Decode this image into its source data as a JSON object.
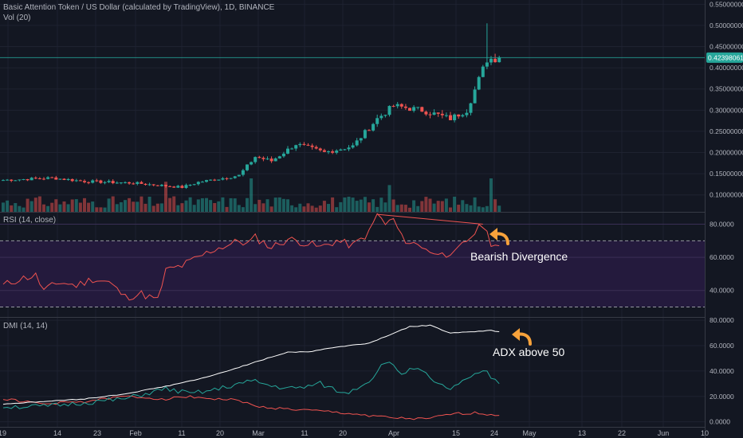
{
  "header": {
    "title": "Basic Attention Token / US Dollar (calculated by TradingView), 1D, BINANCE",
    "vol_label": "Vol (20)",
    "rsi_label": "RSI (14, close)",
    "dmi_label": "DMI (14, 14)"
  },
  "last_price": "0.42398061",
  "annotations": {
    "rsi": "Bearish Divergence",
    "dmi": "ADX above 50"
  },
  "colors": {
    "background": "#131722",
    "up": "#26a69a",
    "down": "#ef5350",
    "rsi_line": "#ef5350",
    "rsi_band": "#2a1b46",
    "adx": "#ffffff",
    "di_plus": "#26a69a",
    "di_minus": "#ef5350",
    "arrow": "#f7a23b",
    "price_line": "#26a69a"
  },
  "chart_data": [
    {
      "type": "candlestick",
      "name": "price",
      "x_ticks": [
        "19",
        "14",
        "23",
        "Feb",
        "11",
        "20",
        "Mar",
        "11",
        "20",
        "Apr",
        "15",
        "24",
        "May",
        "13",
        "22",
        "Jun",
        "10"
      ],
      "y_ticks": [
        "0.55000000",
        "0.50000000",
        "0.45000000",
        "0.40000000",
        "0.35000000",
        "0.30000000",
        "0.25000000",
        "0.20000000",
        "0.15000000",
        "0.10000000"
      ],
      "ylim": [
        0.06,
        0.56
      ],
      "segments": [
        [
          0,
          0.135
        ],
        [
          12,
          0.14
        ],
        [
          20,
          0.132
        ],
        [
          32,
          0.128
        ],
        [
          44,
          0.118
        ],
        [
          48,
          0.13
        ],
        [
          58,
          0.146
        ],
        [
          62,
          0.19
        ],
        [
          66,
          0.18
        ],
        [
          72,
          0.22
        ],
        [
          79,
          0.2
        ],
        [
          86,
          0.215
        ],
        [
          92,
          0.28
        ],
        [
          96,
          0.31
        ],
        [
          103,
          0.3
        ],
        [
          110,
          0.28
        ],
        [
          114,
          0.3
        ],
        [
          119,
          0.42
        ],
        [
          122,
          0.424
        ]
      ],
      "last_value": 0.42398061,
      "wick_high": 0.505,
      "note": "approximate daily OHLC reconstruction"
    },
    {
      "type": "bar",
      "name": "Vol (20)",
      "values_relative": "approximate volume bars beneath price",
      "spikes": [
        [
          40,
          0.9
        ],
        [
          61,
          1.0
        ],
        [
          95,
          0.8
        ],
        [
          120,
          1.0
        ]
      ]
    },
    {
      "type": "line",
      "name": "RSI (14, close)",
      "y_ticks": [
        "80.0000",
        "60.0000",
        "40.0000"
      ],
      "ylim": [
        24,
        87
      ],
      "bands": [
        30,
        70
      ],
      "points": [
        [
          0,
          43
        ],
        [
          4,
          47
        ],
        [
          8,
          49
        ],
        [
          10,
          40
        ],
        [
          14,
          45
        ],
        [
          18,
          43
        ],
        [
          22,
          47
        ],
        [
          26,
          45
        ],
        [
          30,
          36
        ],
        [
          34,
          38
        ],
        [
          38,
          34
        ],
        [
          40,
          52
        ],
        [
          44,
          55
        ],
        [
          48,
          60
        ],
        [
          52,
          65
        ],
        [
          56,
          68
        ],
        [
          58,
          70
        ],
        [
          60,
          68
        ],
        [
          62,
          72
        ],
        [
          66,
          66
        ],
        [
          70,
          71
        ],
        [
          74,
          69
        ],
        [
          78,
          66
        ],
        [
          82,
          70
        ],
        [
          86,
          67
        ],
        [
          90,
          75
        ],
        [
          92,
          86
        ],
        [
          94,
          80
        ],
        [
          96,
          83
        ],
        [
          98,
          72
        ],
        [
          100,
          69
        ],
        [
          104,
          66
        ],
        [
          106,
          61
        ],
        [
          108,
          65
        ],
        [
          110,
          59
        ],
        [
          112,
          65
        ],
        [
          114,
          70
        ],
        [
          118,
          80
        ],
        [
          120,
          69
        ],
        [
          122,
          67
        ]
      ],
      "divergence_line": [
        [
          92,
          86
        ],
        [
          118,
          80
        ]
      ]
    },
    {
      "type": "line",
      "name": "DMI (14, 14)",
      "y_ticks": [
        "80.0000",
        "60.0000",
        "40.0000",
        "20.0000",
        "0.0000"
      ],
      "ylim": [
        -4,
        82
      ],
      "series": [
        {
          "name": "ADX",
          "points": [
            [
              0,
              14
            ],
            [
              10,
              16
            ],
            [
              20,
              18
            ],
            [
              30,
              22
            ],
            [
              40,
              28
            ],
            [
              50,
              35
            ],
            [
              60,
              45
            ],
            [
              70,
              55
            ],
            [
              75,
              55
            ],
            [
              80,
              58
            ],
            [
              90,
              62
            ],
            [
              100,
              75
            ],
            [
              105,
              76
            ],
            [
              110,
              70
            ],
            [
              120,
              72
            ],
            [
              122,
              71
            ]
          ]
        },
        {
          "name": "+DI",
          "points": [
            [
              0,
              12
            ],
            [
              10,
              12
            ],
            [
              20,
              15
            ],
            [
              30,
              18
            ],
            [
              40,
              26
            ],
            [
              46,
              22
            ],
            [
              52,
              25
            ],
            [
              58,
              30
            ],
            [
              62,
              32
            ],
            [
              66,
              28
            ],
            [
              72,
              26
            ],
            [
              78,
              30
            ],
            [
              84,
              22
            ],
            [
              90,
              32
            ],
            [
              94,
              48
            ],
            [
              98,
              38
            ],
            [
              102,
              44
            ],
            [
              106,
              30
            ],
            [
              110,
              26
            ],
            [
              116,
              36
            ],
            [
              118,
              41
            ],
            [
              122,
              30
            ]
          ]
        },
        {
          "name": "-DI",
          "points": [
            [
              0,
              18
            ],
            [
              10,
              14
            ],
            [
              20,
              16
            ],
            [
              30,
              20
            ],
            [
              40,
              18
            ],
            [
              46,
              20
            ],
            [
              52,
              18
            ],
            [
              58,
              17
            ],
            [
              62,
              12
            ],
            [
              70,
              10
            ],
            [
              80,
              8
            ],
            [
              90,
              5
            ],
            [
              96,
              3
            ],
            [
              104,
              2
            ],
            [
              110,
              6
            ],
            [
              116,
              7
            ],
            [
              122,
              5
            ]
          ]
        }
      ]
    }
  ]
}
